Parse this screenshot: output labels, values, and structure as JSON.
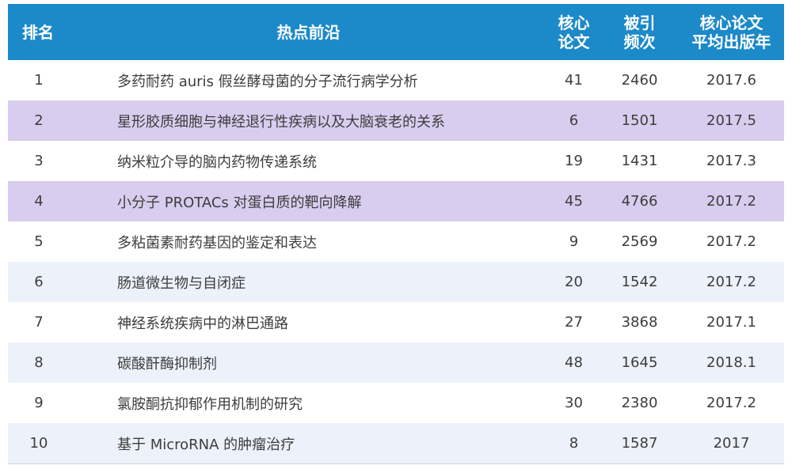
{
  "table": {
    "headers": {
      "rank": "排名",
      "topic": "热点前沿",
      "core_papers": "核心\n论文",
      "citations": "被引\n频次",
      "avg_year": "核心论文\n平均出版年"
    },
    "rows": [
      {
        "rank": "1",
        "topic": "多药耐药 auris 假丝酵母菌的分子流行病学分析",
        "core_papers": "41",
        "citations": "2460",
        "avg_year": "2017.6",
        "style": "plain"
      },
      {
        "rank": "2",
        "topic": "星形胶质细胞与神经退行性疾病以及大脑衰老的关系",
        "core_papers": "6",
        "citations": "1501",
        "avg_year": "2017.5",
        "style": "hl"
      },
      {
        "rank": "3",
        "topic": "纳米粒介导的脑内药物传递系统",
        "core_papers": "19",
        "citations": "1431",
        "avg_year": "2017.3",
        "style": "plain"
      },
      {
        "rank": "4",
        "topic": "小分子 PROTACs 对蛋白质的靶向降解",
        "core_papers": "45",
        "citations": "4766",
        "avg_year": "2017.2",
        "style": "hl"
      },
      {
        "rank": "5",
        "topic": "多粘菌素耐药基因的鉴定和表达",
        "core_papers": "9",
        "citations": "2569",
        "avg_year": "2017.2",
        "style": "plain"
      },
      {
        "rank": "6",
        "topic": "肠道微生物与自闭症",
        "core_papers": "20",
        "citations": "1542",
        "avg_year": "2017.2",
        "style": "alt"
      },
      {
        "rank": "7",
        "topic": "神经系统疾病中的淋巴通路",
        "core_papers": "27",
        "citations": "3868",
        "avg_year": "2017.1",
        "style": "plain"
      },
      {
        "rank": "8",
        "topic": "碳酸酐酶抑制剂",
        "core_papers": "48",
        "citations": "1645",
        "avg_year": "2018.1",
        "style": "alt"
      },
      {
        "rank": "9",
        "topic": "氯胺酮抗抑郁作用机制的研究",
        "core_papers": "30",
        "citations": "2380",
        "avg_year": "2017.2",
        "style": "plain"
      },
      {
        "rank": "10",
        "topic": "基于 MicroRNA 的肿瘤治疗",
        "core_papers": "8",
        "citations": "1587",
        "avg_year": "2017",
        "style": "alt"
      }
    ]
  },
  "colors": {
    "header_bg": "#1c89c9",
    "highlight_row": "#d8cdee",
    "alt_row": "#edf1fa"
  }
}
